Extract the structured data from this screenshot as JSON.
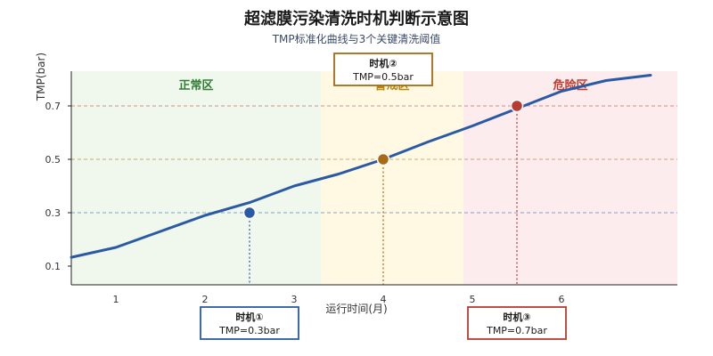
{
  "title": "超滤膜污染清洗时机判断示意图",
  "subtitle": "TMP标准化曲线与3个关键清洗阈值",
  "chart_data": {
    "type": "line",
    "xlabel": "运行时间(月)",
    "ylabel": "TMP(bar)",
    "xlim": [
      0,
      6.8
    ],
    "ylim": [
      0.03,
      0.83
    ],
    "x_ticks": [
      "1",
      "2",
      "3",
      "4",
      "5",
      "6"
    ],
    "y_ticks": [
      "0.1",
      "0.3",
      "0.5",
      "0.7"
    ],
    "series": [
      {
        "color": "#2a5aa5",
        "x": [
          0,
          0.5,
          1,
          1.5,
          2,
          2.5,
          3,
          3.5,
          4,
          4.5,
          5,
          5.5,
          6,
          6.5
        ],
        "y": [
          0.133,
          0.17,
          0.23,
          0.29,
          0.338,
          0.4,
          0.445,
          0.5,
          0.565,
          0.625,
          0.69,
          0.755,
          0.795,
          0.815
        ]
      }
    ],
    "zones": [
      {
        "label": "正常区",
        "x_range": [
          0,
          2.8
        ],
        "fill": "#f0f8ee",
        "color": "#2e7d32"
      },
      {
        "label": "警戒区",
        "x_range": [
          2.8,
          4.4
        ],
        "fill": "#fff9e3",
        "color": "#b8860b"
      },
      {
        "label": "危险区",
        "x_range": [
          4.4,
          6.8
        ],
        "fill": "#fdeced",
        "color": "#c0392b"
      }
    ],
    "thresholds": [
      {
        "name": "时机①",
        "text": "TMP=0.3bar",
        "x": 2.0,
        "y": 0.3,
        "color": "#2a5aa5"
      },
      {
        "name": "时机②",
        "text": "TMP=0.5bar",
        "x": 3.5,
        "y": 0.5,
        "color": "#a86a12"
      },
      {
        "name": "时机③",
        "text": "TMP=0.7bar",
        "x": 5.0,
        "y": 0.7,
        "color": "#b83a30"
      }
    ]
  }
}
